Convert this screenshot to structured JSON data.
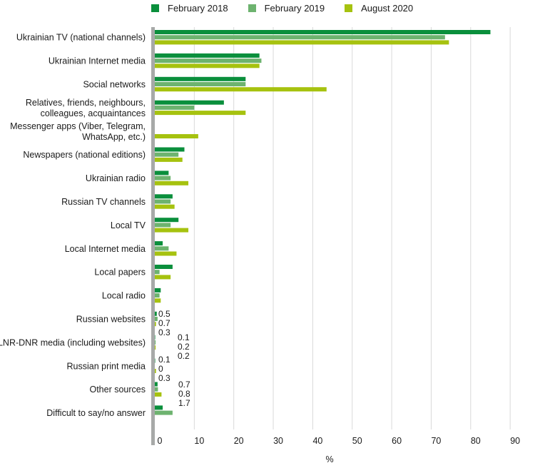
{
  "chart_data": {
    "type": "bar",
    "orientation": "horizontal",
    "categories": [
      "Ukrainian TV (national channels)",
      "Ukrainian Internet media",
      "Social networks",
      "Relatives, friends, neighbours, colleagues, acquaintances",
      "Messenger apps (Viber, Telegram, WhatsApp, etc.)",
      "Newspapers (national editions)",
      "Ukrainian radio",
      "Russian TV channels",
      "Local TV",
      "Local Internet media",
      "Local papers",
      "Local radio",
      "Russian websites",
      "LNR-DNR media (including websites)",
      "Russian print media",
      "Other sources",
      "Difficult to say/no answer"
    ],
    "category_label_lines": [
      [
        "Ukrainian TV (national channels)"
      ],
      [
        "Ukrainian Internet media"
      ],
      [
        "Social networks"
      ],
      [
        "Relatives, friends, neighbours,",
        "colleagues, acquaintances"
      ],
      [
        "Messenger apps (Viber, Telegram,",
        "WhatsApp, etc.)"
      ],
      [
        "Newspapers (national editions)"
      ],
      [
        "Ukrainian radio"
      ],
      [
        "Russian TV channels"
      ],
      [
        "Local TV"
      ],
      [
        "Local Internet media"
      ],
      [
        "Local papers"
      ],
      [
        "Local radio"
      ],
      [
        "Russian websites"
      ],
      [
        "LNR-DNR media (including websites)"
      ],
      [
        "Russian print media"
      ],
      [
        "Other sources"
      ],
      [
        "Difficult to say/no answer"
      ]
    ],
    "series": [
      {
        "name": "February 2018",
        "color": "#0a8f3c",
        "values": [
          85,
          26.5,
          23,
          17.5,
          null,
          7.5,
          3.5,
          4.5,
          6,
          2,
          4.5,
          1.5,
          0.5,
          0.1,
          0.1,
          0.7,
          2
        ]
      },
      {
        "name": "February 2019",
        "color": "#6db36f",
        "values": [
          73.5,
          27,
          23,
          10,
          null,
          6,
          4,
          4,
          4,
          3.5,
          1.2,
          1.2,
          0.7,
          0.2,
          0,
          0.8,
          4.5
        ]
      },
      {
        "name": "August 2020",
        "color": "#a6c20f",
        "values": [
          74.5,
          26.5,
          43.5,
          23,
          11,
          7,
          8.5,
          5,
          8.5,
          5.5,
          4,
          1.5,
          0.3,
          0.2,
          0.3,
          1.7,
          null
        ]
      }
    ],
    "data_labels": {
      "Russian websites": [
        "0.5",
        "0.7",
        "0.3"
      ],
      "LNR-DNR media (including websites)": [
        "0.1",
        "0.2",
        "0.2"
      ],
      "Russian print media": [
        "0.1",
        "0",
        "0.3"
      ],
      "Other sources": [
        "0.7",
        "0.8",
        "1.7"
      ]
    },
    "xlabel": "%",
    "xlim": [
      0,
      90
    ],
    "xticks": [
      "0",
      "10",
      "20",
      "30",
      "40",
      "50",
      "60",
      "70",
      "80",
      "90"
    ],
    "grid": true,
    "legend_position": "top"
  }
}
